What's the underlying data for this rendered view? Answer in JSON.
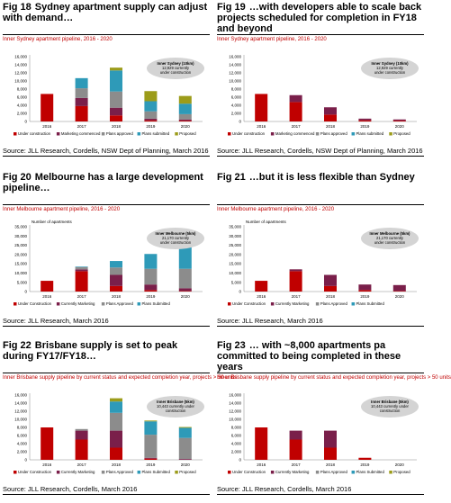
{
  "colors": {
    "uc": "#c00000",
    "cm": "#7a1f4a",
    "pa": "#8c8c8c",
    "ps": "#2e9ab8",
    "pr": "#9c9c1a",
    "bubble": "#d4d4d4"
  },
  "legend_labels": {
    "syd": [
      "Under construction",
      "Marketing commenced",
      "Plans approved",
      "Plans submitted",
      "Proposed"
    ],
    "mel": [
      "Under Construction",
      "Currently Marketing",
      "Plans Approved",
      "Plans Submitted"
    ],
    "bri": [
      "Under Construction",
      "Currently Marketing",
      "Plans Approved",
      "Plans Submitted",
      "Proposed"
    ]
  },
  "panels": [
    {
      "fig": "Fig 18",
      "title": "Sydney apartment supply can adjust with demand…",
      "subtitle": "Inner Sydney apartment pipeline, 2016 - 2020",
      "source": "Source: JLL Research, Cordells, NSW Dept of Planning, March 2016",
      "bubble": [
        "Inner Sydney (10km)",
        "12,929 currently",
        "under construction"
      ]
    },
    {
      "fig": "Fig 19",
      "title": "…with developers able to scale back projects scheduled for completion in FY18 and beyond",
      "subtitle": "Inner Sydney apartment pipeline, 2016 - 2020",
      "source": "Source: JLL Research, Cordells, NSW Dept of Planning, March 2016",
      "bubble": [
        "Inner Sydney (10km)",
        "12,929 currently",
        "under construction"
      ]
    },
    {
      "fig": "Fig 20",
      "title": "Melbourne has a large development pipeline…",
      "subtitle": "Inner Melbourne apartment pipeline, 2016 - 2020",
      "ylabel": "Number of apartments",
      "source": "Source: JLL Research, March 2016",
      "bubble": [
        "Inner Melbourne (5km)",
        "21,170 currently",
        "under construction"
      ]
    },
    {
      "fig": "Fig 21",
      "title": "…but it is less flexible than Sydney",
      "subtitle": "Inner Melbourne apartment pipeline, 2016 - 2020",
      "ylabel": "Number of apartments",
      "source": "Source: JLL Research, March 2016",
      "bubble": [
        "Inner Melbourne (5km)",
        "21,170 currently",
        "under construction"
      ]
    },
    {
      "fig": "Fig 22",
      "title": "Brisbane supply is set to peak during FY17/FY18…",
      "subtitle": "Inner Brisbane supply pipeline by current status and expected completion year, projects > 50 units",
      "source": "Source: JLL Research, Cordells, March 2016",
      "bubble": [
        "Inner Brisbane (5km)",
        "10,443 currently under",
        "construction"
      ]
    },
    {
      "fig": "Fig 23",
      "title": "… with ~8,000 apartments pa committed to being completed in these years",
      "subtitle": "Inner Brisbane supply pipeline by current status and expected completion year, projects > 50 units",
      "source": "Source: JLL Research, Cordells, March 2016",
      "bubble": [
        "Inner Brisbane (5km)",
        "10,443 currently under",
        "construction"
      ]
    }
  ],
  "chart_data": [
    {
      "type": "bar",
      "stacked": true,
      "categories": [
        "2016",
        "2017",
        "2018",
        "2019",
        "2020"
      ],
      "ylim": [
        0,
        16000
      ],
      "yticks": [
        "0",
        "2,000",
        "4,000",
        "6,000",
        "8,000",
        "10,000",
        "12,000",
        "14,000",
        "16,000"
      ],
      "legend": "bottom",
      "series": [
        {
          "name": "Under construction",
          "values": [
            6800,
            3800,
            1500,
            300,
            200
          ]
        },
        {
          "name": "Marketing commenced",
          "values": [
            0,
            2000,
            1900,
            400,
            300
          ]
        },
        {
          "name": "Plans approved",
          "values": [
            0,
            2400,
            4000,
            1800,
            1300
          ]
        },
        {
          "name": "Plans submitted",
          "values": [
            0,
            2500,
            5200,
            2500,
            2600
          ]
        },
        {
          "name": "Proposed",
          "values": [
            0,
            0,
            700,
            2500,
            1900
          ]
        }
      ]
    },
    {
      "type": "bar",
      "stacked": true,
      "categories": [
        "2016",
        "2017",
        "2018",
        "2019",
        "2020"
      ],
      "ylim": [
        0,
        16000
      ],
      "yticks": [
        "0",
        "2,000",
        "4,000",
        "6,000",
        "8,000",
        "10,000",
        "12,000",
        "14,000",
        "16,000"
      ],
      "legend": "bottom",
      "series": [
        {
          "name": "Under construction",
          "values": [
            6800,
            4800,
            1700,
            300,
            200
          ]
        },
        {
          "name": "Marketing commenced",
          "values": [
            0,
            1700,
            1800,
            400,
            300
          ]
        },
        {
          "name": "Plans approved",
          "values": [
            0,
            0,
            0,
            0,
            0
          ]
        },
        {
          "name": "Plans submitted",
          "values": [
            0,
            0,
            0,
            0,
            0
          ]
        },
        {
          "name": "Proposed",
          "values": [
            0,
            0,
            0,
            0,
            0
          ]
        }
      ]
    },
    {
      "type": "bar",
      "stacked": true,
      "categories": [
        "2016",
        "2017",
        "2018",
        "2019",
        "2020"
      ],
      "ylim": [
        0,
        35000
      ],
      "yticks": [
        "0",
        "5,000",
        "10,000",
        "15,000",
        "20,000",
        "25,000",
        "30,000",
        "35,000"
      ],
      "legend": "bottom",
      "series": [
        {
          "name": "Under Construction",
          "values": [
            5800,
            11000,
            3000,
            800,
            300
          ]
        },
        {
          "name": "Currently Marketing",
          "values": [
            0,
            1000,
            6000,
            3000,
            1500
          ]
        },
        {
          "name": "Plans Approved",
          "values": [
            0,
            1200,
            4000,
            8500,
            10500
          ]
        },
        {
          "name": "Plans Submitted",
          "values": [
            0,
            300,
            3500,
            8000,
            12700
          ]
        }
      ]
    },
    {
      "type": "bar",
      "stacked": true,
      "categories": [
        "2016",
        "2017",
        "2018",
        "2019",
        "2020"
      ],
      "ylim": [
        0,
        35000
      ],
      "yticks": [
        "0",
        "5,000",
        "10,000",
        "15,000",
        "20,000",
        "25,000",
        "30,000",
        "35,000"
      ],
      "legend": "bottom",
      "series": [
        {
          "name": "Under Construction",
          "values": [
            5800,
            11000,
            3000,
            800,
            300
          ]
        },
        {
          "name": "Currently Marketing",
          "values": [
            0,
            1000,
            6000,
            3000,
            3200
          ]
        },
        {
          "name": "Plans Approved",
          "values": [
            0,
            0,
            0,
            0,
            0
          ]
        },
        {
          "name": "Plans Submitted",
          "values": [
            0,
            0,
            0,
            0,
            0
          ]
        }
      ]
    },
    {
      "type": "bar",
      "stacked": true,
      "categories": [
        "2016",
        "2017",
        "2018",
        "2019",
        "2020"
      ],
      "ylim": [
        0,
        16000
      ],
      "yticks": [
        "0",
        "2,000",
        "4,000",
        "6,000",
        "8,000",
        "10,000",
        "12,000",
        "14,000",
        "16,000"
      ],
      "legend": "bottom",
      "series": [
        {
          "name": "Under Construction",
          "values": [
            8000,
            5000,
            3000,
            300,
            0
          ]
        },
        {
          "name": "Currently Marketing",
          "values": [
            0,
            2200,
            4200,
            200,
            200
          ]
        },
        {
          "name": "Plans Approved",
          "values": [
            0,
            400,
            4400,
            5700,
            5200
          ]
        },
        {
          "name": "Plans Submitted",
          "values": [
            0,
            0,
            2800,
            3300,
            2500
          ]
        },
        {
          "name": "Proposed",
          "values": [
            0,
            0,
            800,
            200,
            200
          ]
        }
      ]
    },
    {
      "type": "bar",
      "stacked": true,
      "categories": [
        "2016",
        "2017",
        "2018",
        "2019",
        "2020"
      ],
      "ylim": [
        0,
        16000
      ],
      "yticks": [
        "0",
        "2,000",
        "4,000",
        "6,000",
        "8,000",
        "10,000",
        "12,000",
        "14,000",
        "16,000"
      ],
      "legend": "bottom",
      "series": [
        {
          "name": "Under Construction",
          "values": [
            8000,
            5000,
            3000,
            500,
            0
          ]
        },
        {
          "name": "Currently Marketing",
          "values": [
            0,
            2200,
            4200,
            0,
            0
          ]
        },
        {
          "name": "Plans Approved",
          "values": [
            0,
            0,
            0,
            0,
            0
          ]
        },
        {
          "name": "Plans Submitted",
          "values": [
            0,
            0,
            0,
            0,
            0
          ]
        },
        {
          "name": "Proposed",
          "values": [
            0,
            0,
            0,
            0,
            0
          ]
        }
      ]
    }
  ]
}
